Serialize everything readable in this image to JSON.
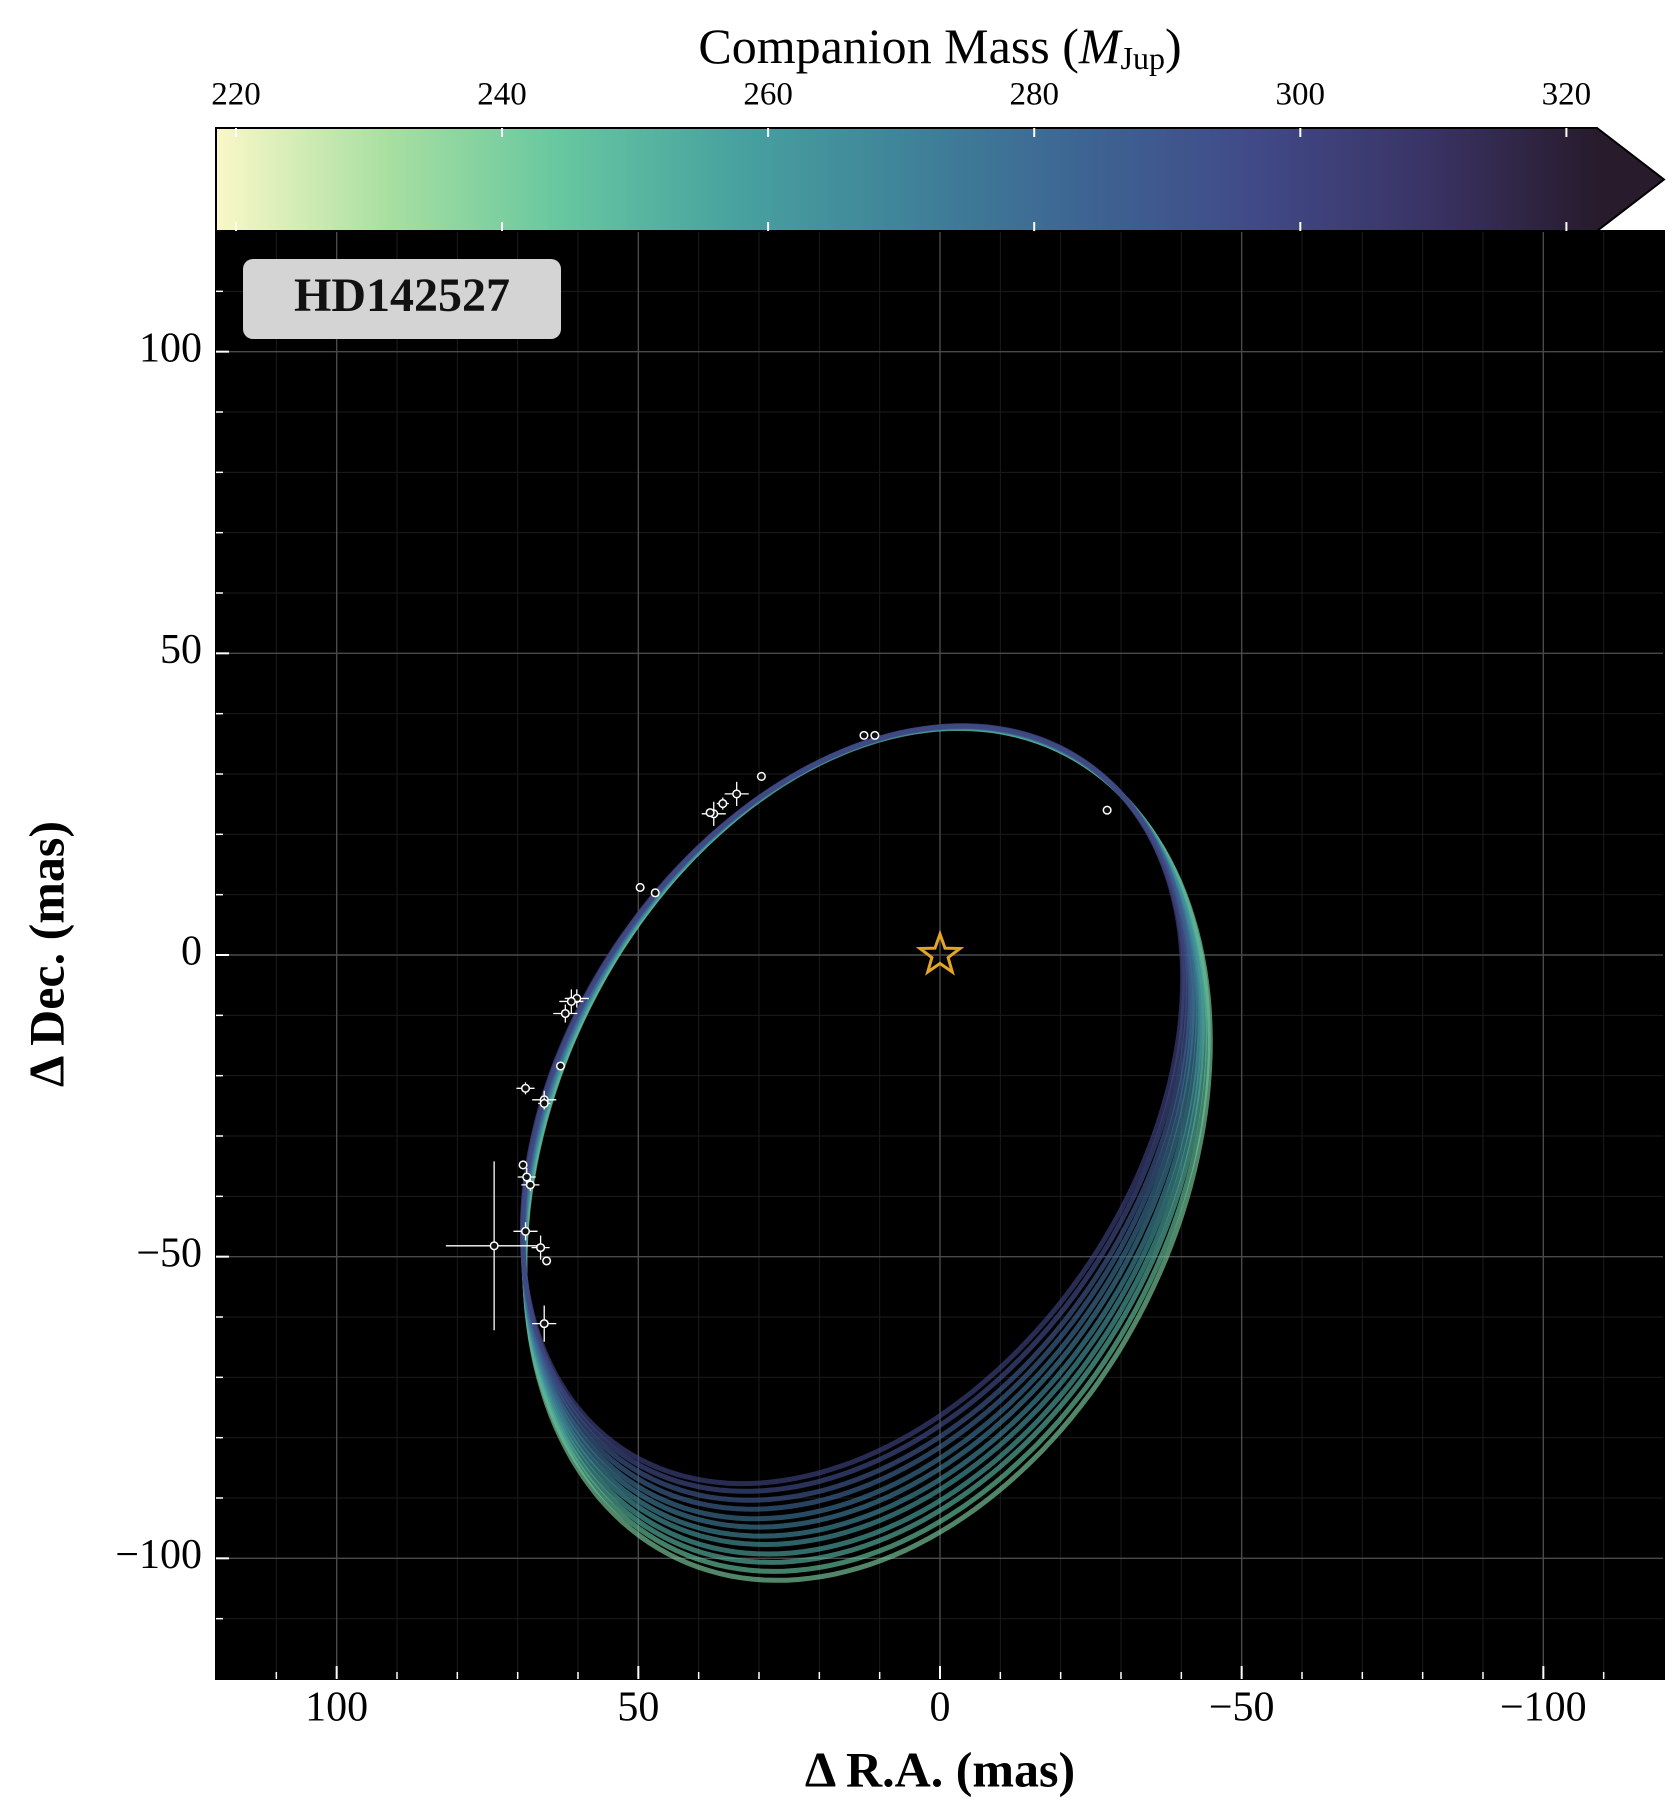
{
  "chart_data": {
    "type": "orbit",
    "label": "HD142527",
    "xlabel": "Δ R.A. (mas)",
    "ylabel": "Δ Dec. (mas)",
    "xlim": [
      120,
      -120
    ],
    "ylim": [
      -120,
      120
    ],
    "xticks": [
      100,
      50,
      0,
      {
        "value": -50,
        "label": "−50"
      },
      {
        "value": -100,
        "label": "−100"
      }
    ],
    "yticks": [
      {
        "value": -100,
        "label": "−100"
      },
      {
        "value": -50,
        "label": "−50"
      },
      0,
      50,
      100
    ],
    "minor_ticks": [
      -110,
      -90,
      -80,
      -70,
      -60,
      -40,
      -30,
      -20,
      -10,
      10,
      20,
      30,
      40,
      60,
      70,
      80,
      90,
      110
    ],
    "grid": true,
    "colorbar": {
      "label_parts": [
        "Companion Mass (",
        "M",
        "Jup",
        ")"
      ],
      "lim": [
        218.5,
        322.3
      ],
      "ticks": [
        220,
        240,
        260,
        280,
        300,
        320
      ],
      "colormap": [
        "#faf8c8",
        "#a8dfa1",
        "#66c7a0",
        "#48a29f",
        "#3f8399",
        "#3d6593",
        "#414a88",
        "#3a3466",
        "#271b2c"
      ],
      "extend": "max"
    },
    "star": {
      "x": 0,
      "y": 0,
      "color": "#e3a526"
    },
    "orbits": [
      {
        "mass": 240,
        "center": [
          12.0,
          -33.0
        ],
        "axis1": [
          56.0,
          -7.0
        ],
        "axis2": [
          -9.5,
          70.3
        ]
      },
      {
        "mass": 245,
        "center": [
          12.2,
          -32.3
        ],
        "axis1": [
          55.8,
          -7.1
        ],
        "axis2": [
          -9.7,
          69.5
        ]
      },
      {
        "mass": 251,
        "center": [
          12.5,
          -31.5
        ],
        "axis1": [
          55.5,
          -7.2
        ],
        "axis2": [
          -9.9,
          68.8
        ]
      },
      {
        "mass": 256,
        "center": [
          12.7,
          -30.8
        ],
        "axis1": [
          55.3,
          -7.3
        ],
        "axis2": [
          -10.0,
          68.1
        ]
      },
      {
        "mass": 262,
        "center": [
          12.9,
          -30.0
        ],
        "axis1": [
          55.1,
          -7.4
        ],
        "axis2": [
          -10.2,
          67.3
        ]
      },
      {
        "mass": 267,
        "center": [
          13.1,
          -29.3
        ],
        "axis1": [
          54.9,
          -7.5
        ],
        "axis2": [
          -10.4,
          66.6
        ]
      },
      {
        "mass": 273,
        "center": [
          13.4,
          -28.5
        ],
        "axis1": [
          54.6,
          -7.5
        ],
        "axis2": [
          -10.6,
          65.9
        ]
      },
      {
        "mass": 278,
        "center": [
          13.6,
          -27.8
        ],
        "axis1": [
          54.4,
          -7.6
        ],
        "axis2": [
          -10.8,
          65.2
        ]
      },
      {
        "mass": 284,
        "center": [
          13.8,
          -27.0
        ],
        "axis1": [
          54.2,
          -7.7
        ],
        "axis2": [
          -11.0,
          64.4
        ]
      },
      {
        "mass": 289,
        "center": [
          14.0,
          -26.2
        ],
        "axis1": [
          54.0,
          -7.8
        ],
        "axis2": [
          -11.1,
          63.7
        ]
      },
      {
        "mass": 295,
        "center": [
          14.3,
          -25.5
        ],
        "axis1": [
          53.7,
          -7.9
        ],
        "axis2": [
          -11.3,
          62.9
        ]
      },
      {
        "mass": 300,
        "center": [
          14.5,
          -24.8
        ],
        "axis1": [
          53.5,
          -8.0
        ],
        "axis2": [
          -11.5,
          62.3
        ]
      }
    ],
    "astrometry": {
      "x": [
        12.6,
        10.8,
        29.6,
        33.7,
        36.0,
        37.5,
        38.1,
        49.7,
        47.2,
        -27.7,
        60.2,
        61.1,
        62.1,
        62.9,
        68.7,
        65.6,
        65.6,
        69.1,
        68.5,
        67.9,
        73.9,
        68.7,
        66.2,
        65.2,
        65.6
      ],
      "y": [
        36.4,
        36.4,
        29.6,
        26.7,
        25.1,
        23.4,
        23.6,
        11.2,
        10.3,
        24.0,
        -7.2,
        -7.7,
        -9.7,
        -18.4,
        -22.1,
        -24.0,
        -24.6,
        -34.8,
        -36.8,
        -38.1,
        -48.2,
        -45.8,
        -48.5,
        -50.7,
        -61.1
      ],
      "xerr": [
        null,
        null,
        null,
        2,
        1,
        2,
        null,
        null,
        null,
        null,
        2,
        2,
        2,
        null,
        1.5,
        2,
        1,
        null,
        1.5,
        1.5,
        8,
        2,
        1.5,
        null,
        2
      ],
      "yerr": [
        null,
        null,
        null,
        2,
        1,
        2,
        null,
        null,
        null,
        null,
        1.5,
        2,
        1.5,
        null,
        1,
        1.5,
        1,
        null,
        1.5,
        1,
        14,
        1.5,
        2,
        null,
        3
      ]
    }
  }
}
